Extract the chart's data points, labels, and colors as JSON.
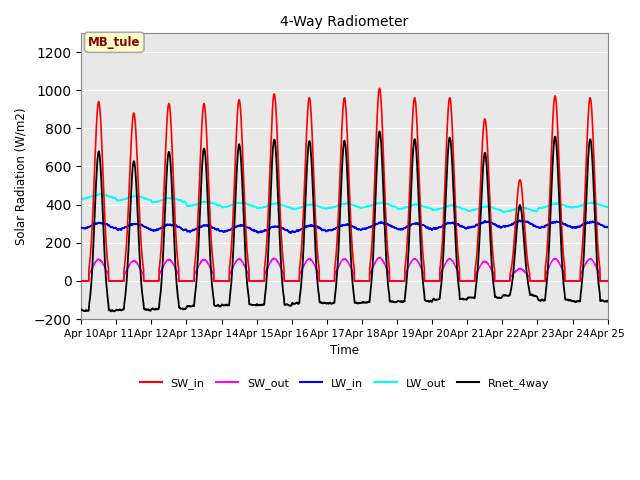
{
  "title": "4-Way Radiometer",
  "xlabel": "Time",
  "ylabel": "Solar Radiation (W/m2)",
  "annotation": "MB_tule",
  "ylim": [
    -200,
    1300
  ],
  "yticks": [
    -200,
    0,
    200,
    400,
    600,
    800,
    1000,
    1200
  ],
  "x_labels": [
    "Apr 10",
    "Apr 11",
    "Apr 12",
    "Apr 13",
    "Apr 14",
    "Apr 15",
    "Apr 16",
    "Apr 17",
    "Apr 18",
    "Apr 19",
    "Apr 20",
    "Apr 21",
    "Apr 22",
    "Apr 23",
    "Apr 24",
    "Apr 25"
  ],
  "n_days": 15,
  "colors": {
    "SW_in": "#FF0000",
    "SW_out": "#FF00FF",
    "LW_in": "#0000FF",
    "LW_out": "#00FFFF",
    "Rnet_4way": "#000000"
  },
  "legend_labels": [
    "SW_in",
    "SW_out",
    "LW_in",
    "LW_out",
    "Rnet_4way"
  ],
  "fig_bg": "#FFFFFF",
  "plot_bg": "#E8E8E8",
  "grid_color": "#FFFFFF",
  "peak_sw": [
    940,
    880,
    930,
    930,
    950,
    980,
    960,
    960,
    1010,
    960,
    960,
    850,
    530,
    970,
    960
  ],
  "lw_out_base": [
    430,
    420,
    410,
    390,
    385,
    380,
    375,
    380,
    385,
    375,
    370,
    365,
    360,
    380,
    385
  ],
  "lw_in_base": [
    290,
    285,
    280,
    275,
    275,
    270,
    275,
    280,
    290,
    285,
    290,
    295,
    300,
    295,
    295
  ]
}
